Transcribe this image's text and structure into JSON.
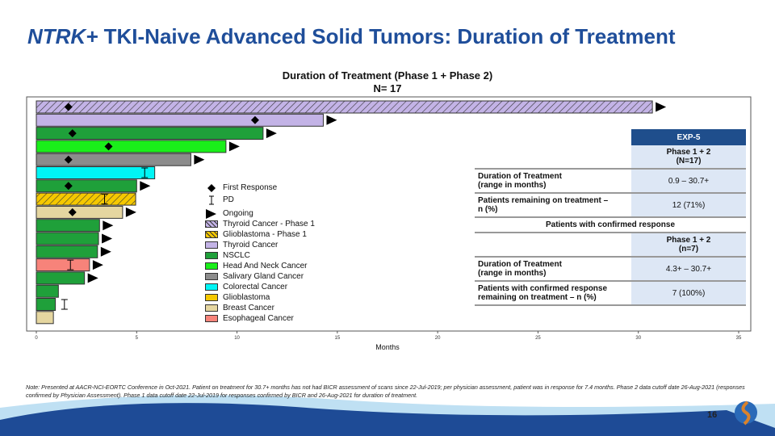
{
  "title_italic": "NTRK+",
  "title_rest": " TKI-Naive Advanced Solid Tumors: Duration of Treatment",
  "chart_data": {
    "type": "bar",
    "orientation": "horizontal",
    "title": "Duration of Treatment (Phase 1 + Phase 2)",
    "subtitle": "N= 17",
    "xlabel": "Months",
    "xlim": [
      0,
      35
    ],
    "xticks": [
      "0",
      "5",
      "10",
      "15",
      "20",
      "25",
      "30",
      "35"
    ],
    "bars": [
      {
        "type": "Thyroid Cancer - Phase 1",
        "months": 30.7,
        "first_response": 1.6,
        "pd": null,
        "ongoing": true
      },
      {
        "type": "Thyroid Cancer",
        "months": 14.3,
        "first_response": 10.9,
        "pd": null,
        "ongoing": true
      },
      {
        "type": "NSCLC",
        "months": 11.3,
        "first_response": 1.8,
        "pd": null,
        "ongoing": true
      },
      {
        "type": "Head And Neck Cancer",
        "months": 9.45,
        "first_response": 3.6,
        "pd": null,
        "ongoing": true
      },
      {
        "type": "Salivary Gland Cancer",
        "months": 7.7,
        "first_response": 1.6,
        "pd": null,
        "ongoing": true
      },
      {
        "type": "Colorectal Cancer",
        "months": 5.9,
        "first_response": null,
        "pd": 5.4,
        "ongoing": false
      },
      {
        "type": "NSCLC",
        "months": 5.0,
        "first_response": 1.6,
        "pd": null,
        "ongoing": true
      },
      {
        "type": "Glioblastoma - Phase 1",
        "months": 4.95,
        "first_response": null,
        "pd": 3.4,
        "ongoing": false
      },
      {
        "type": "Breast Cancer",
        "months": 4.3,
        "first_response": 1.8,
        "pd": null,
        "ongoing": true
      },
      {
        "type": "NSCLC",
        "months": 3.15,
        "first_response": null,
        "pd": null,
        "ongoing": true
      },
      {
        "type": "NSCLC",
        "months": 3.1,
        "first_response": null,
        "pd": null,
        "ongoing": true
      },
      {
        "type": "NSCLC",
        "months": 3.05,
        "first_response": null,
        "pd": null,
        "ongoing": true
      },
      {
        "type": "Esophageal Cancer",
        "months": 2.65,
        "first_response": null,
        "pd": 1.7,
        "ongoing": true
      },
      {
        "type": "NSCLC",
        "months": 2.4,
        "first_response": null,
        "pd": null,
        "ongoing": true
      },
      {
        "type": "NSCLC",
        "months": 1.1,
        "first_response": null,
        "pd": null,
        "ongoing": false
      },
      {
        "type": "NSCLC",
        "months": 0.95,
        "first_response": null,
        "pd": 1.4,
        "ongoing": false
      },
      {
        "type": "Breast Cancer",
        "months": 0.85,
        "first_response": null,
        "pd": null,
        "ongoing": false
      }
    ],
    "legend_markers": [
      "First Response",
      "PD",
      "Ongoing"
    ],
    "legend": [
      {
        "name": "Thyroid Cancer - Phase 1",
        "color": "#c3b3e6",
        "hatch": true
      },
      {
        "name": "Glioblastoma - Phase 1",
        "color": "#f5c800",
        "hatch": true
      },
      {
        "name": "Thyroid Cancer",
        "color": "#c3b3e6",
        "hatch": false
      },
      {
        "name": "NSCLC",
        "color": "#1fa03a",
        "hatch": false
      },
      {
        "name": "Head And Neck Cancer",
        "color": "#1aef1a",
        "hatch": false
      },
      {
        "name": "Salivary Gland Cancer",
        "color": "#8c8c8c",
        "hatch": false
      },
      {
        "name": "Colorectal Cancer",
        "color": "#00f5f5",
        "hatch": false
      },
      {
        "name": "Glioblastoma",
        "color": "#f5c800",
        "hatch": false
      },
      {
        "name": "Breast Cancer",
        "color": "#e5d6a0",
        "hatch": false
      },
      {
        "name": "Esophageal Cancer",
        "color": "#f7837a",
        "hatch": false
      }
    ],
    "legend_placement": "center"
  },
  "table": {
    "header": "EXP-5",
    "col1": "Phase 1 + 2",
    "col1_n": "(N=17)",
    "r1_label1": "Duration of Treatment",
    "r1_label2": "(range in months)",
    "r1_value": "0.9 – 30.7+",
    "r2_label1": "Patients remaining on treatment –",
    "r2_label2": "n (%)",
    "r2_value": "12 (71%)",
    "section": "Patients with confirmed response",
    "col2": "Phase 1 + 2",
    "col2_n": "(n=7)",
    "r3_label1": "Duration of Treatment",
    "r3_label2": "(range in months)",
    "r3_value": "4.3+ – 30.7+",
    "r4_label1": "Patients with confirmed response",
    "r4_label2": "remaining on treatment – n (%)",
    "r4_value": "7 (100%)"
  },
  "note": "Note: Presented at AACR-NCI-EORTC Conference in Oct-2021. Patient on treatment for 30.7+ months has not had BICR assessment of scans since 22-Jul-2019; per physician assessment, patient was in response for 7.4 months. Phase 2 data cutoff date 26-Aug-2021 (responses confirmed by Physician Assessment). Phase 1 data cutoff date 22-Jul-2019 for responses confirmed by BICR and 26-Aug-2021 for duration of treatment.",
  "page_number": "16"
}
